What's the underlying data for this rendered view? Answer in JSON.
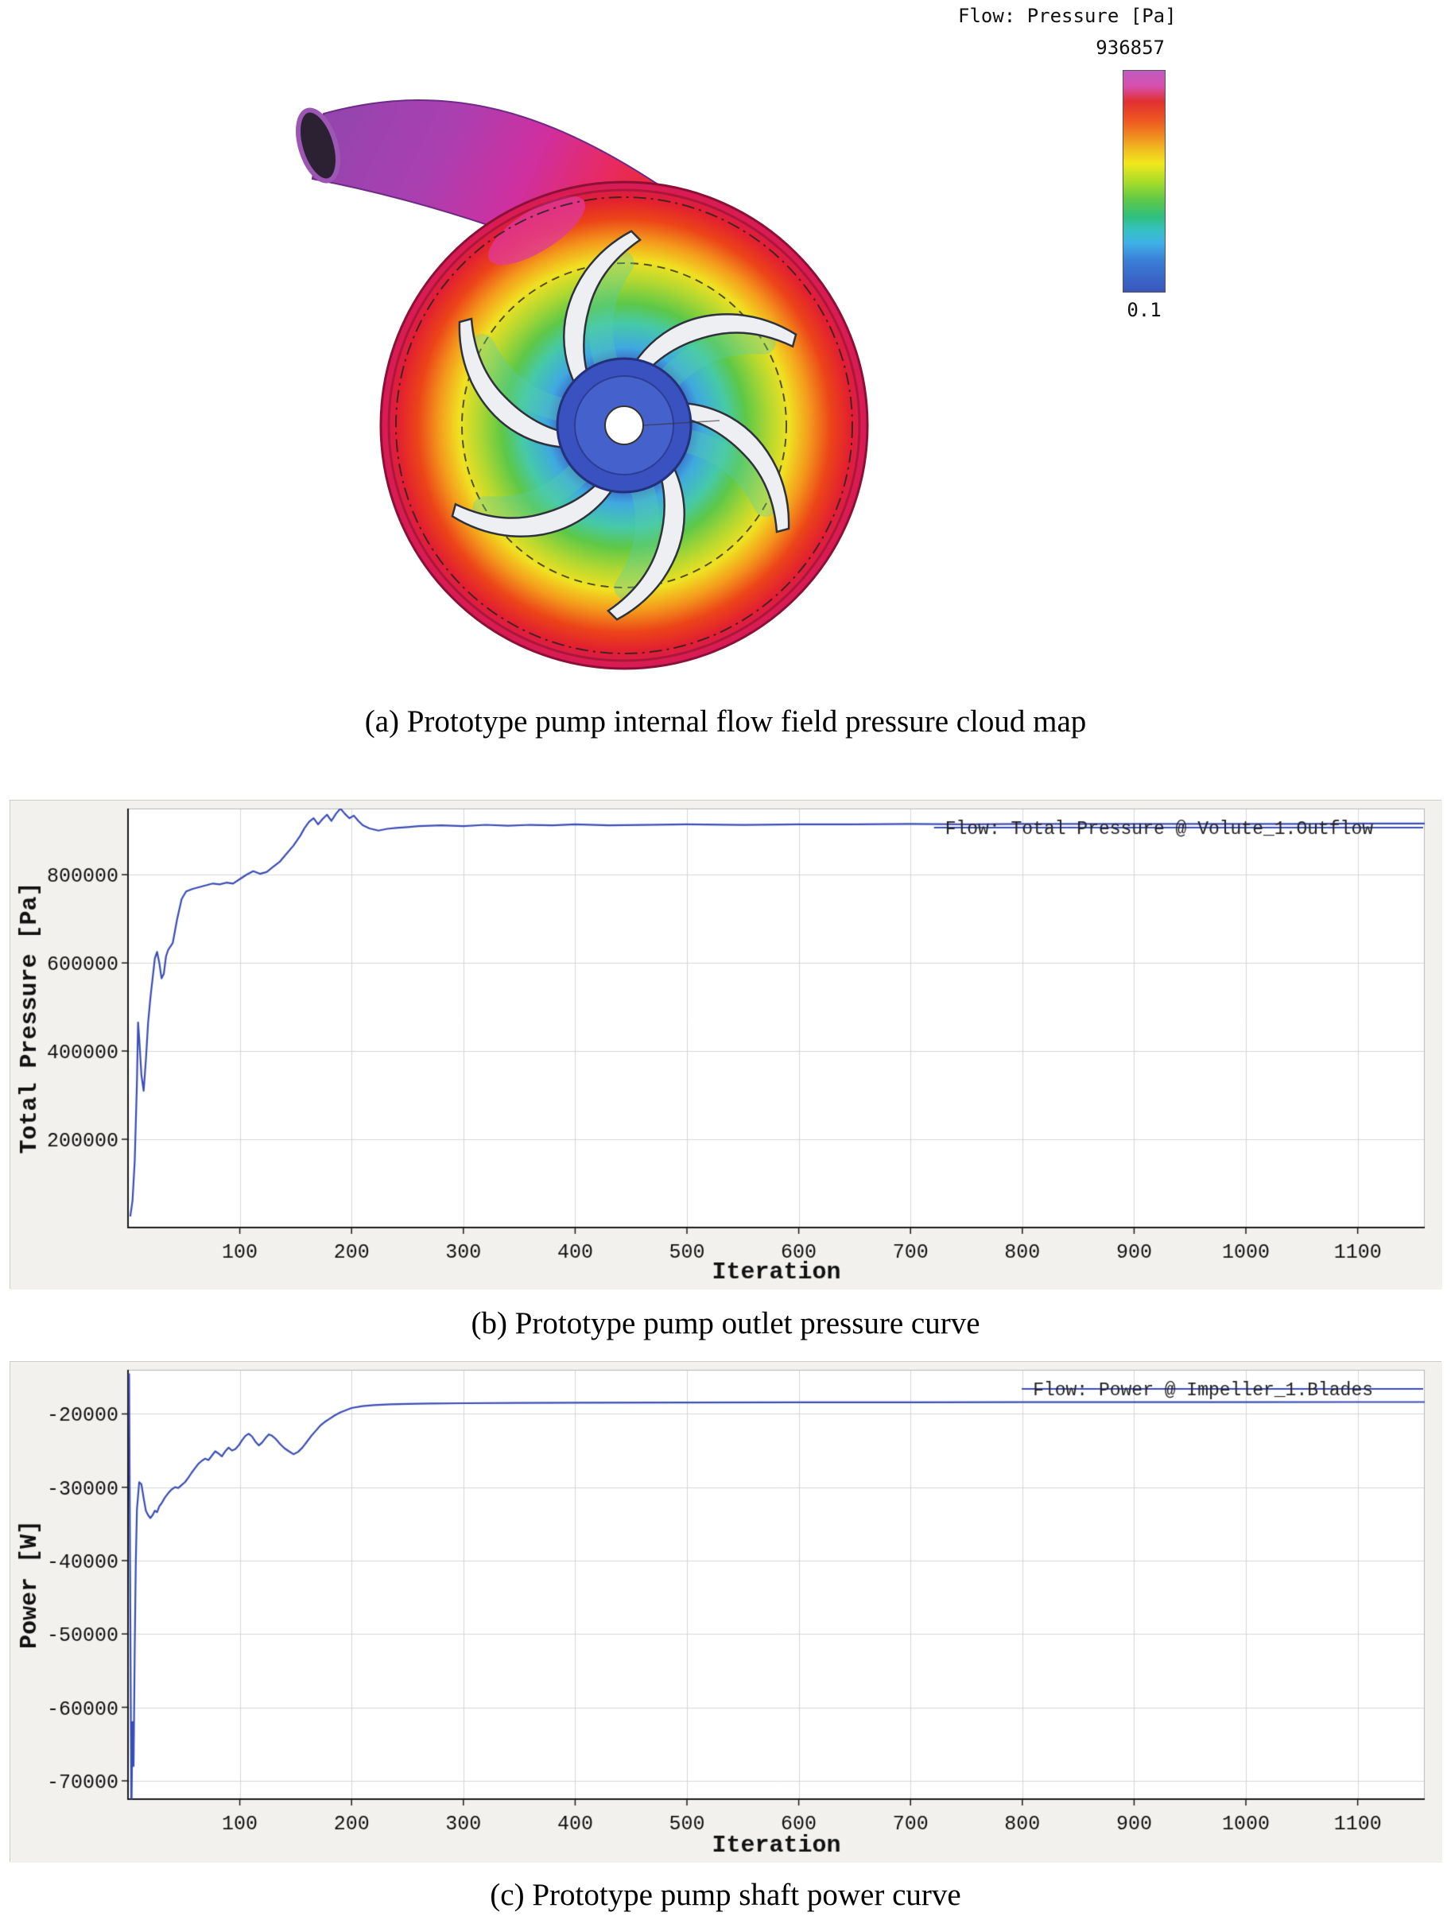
{
  "figure_a": {
    "legend": {
      "title": "Flow: Pressure [Pa]",
      "max_value": "936857",
      "min_value": "0.1",
      "colorbar_colors": [
        "#c05cc0",
        "#e03030",
        "#f08020",
        "#f0e81c",
        "#62c946",
        "#35c2c2",
        "#3a7ed6",
        "#3a55bc"
      ]
    },
    "caption": "(a) Prototype pump internal flow field pressure cloud map"
  },
  "captions": {
    "b": "(b) Prototype pump outlet pressure curve",
    "c": "(c) Prototype pump shaft power curve"
  },
  "chart_data": [
    {
      "id": "chart-b",
      "type": "line",
      "title": "",
      "xlabel": "Iteration",
      "ylabel": "Total Pressure [Pa]",
      "legend": "Flow: Total Pressure @ Volute_1.Outflow",
      "line_color": "#3a4db4",
      "grid": true,
      "legend_position": "top-right",
      "xlim": [
        0,
        1160
      ],
      "ylim": [
        0,
        950000
      ],
      "xticks": [
        100,
        200,
        300,
        400,
        500,
        600,
        700,
        800,
        900,
        1000,
        1100
      ],
      "yticks": [
        200000,
        400000,
        600000,
        800000
      ],
      "points": [
        [
          2,
          25000
        ],
        [
          4,
          60000
        ],
        [
          6,
          150000
        ],
        [
          8,
          330000
        ],
        [
          9,
          465000
        ],
        [
          10,
          430000
        ],
        [
          12,
          345000
        ],
        [
          14,
          310000
        ],
        [
          16,
          380000
        ],
        [
          18,
          465000
        ],
        [
          20,
          520000
        ],
        [
          22,
          565000
        ],
        [
          24,
          610000
        ],
        [
          26,
          625000
        ],
        [
          28,
          600000
        ],
        [
          30,
          565000
        ],
        [
          32,
          575000
        ],
        [
          34,
          615000
        ],
        [
          36,
          630000
        ],
        [
          40,
          645000
        ],
        [
          44,
          700000
        ],
        [
          48,
          745000
        ],
        [
          52,
          762000
        ],
        [
          58,
          768000
        ],
        [
          64,
          772000
        ],
        [
          70,
          776000
        ],
        [
          76,
          780000
        ],
        [
          82,
          778000
        ],
        [
          88,
          782000
        ],
        [
          94,
          780000
        ],
        [
          100,
          790000
        ],
        [
          106,
          800000
        ],
        [
          112,
          808000
        ],
        [
          118,
          802000
        ],
        [
          124,
          806000
        ],
        [
          130,
          818000
        ],
        [
          136,
          830000
        ],
        [
          142,
          848000
        ],
        [
          148,
          866000
        ],
        [
          154,
          888000
        ],
        [
          158,
          906000
        ],
        [
          162,
          920000
        ],
        [
          166,
          928000
        ],
        [
          170,
          914000
        ],
        [
          174,
          926000
        ],
        [
          178,
          936000
        ],
        [
          182,
          922000
        ],
        [
          186,
          938000
        ],
        [
          190,
          950000
        ],
        [
          194,
          938000
        ],
        [
          198,
          928000
        ],
        [
          202,
          934000
        ],
        [
          206,
          922000
        ],
        [
          210,
          912000
        ],
        [
          216,
          905000
        ],
        [
          224,
          900000
        ],
        [
          232,
          904000
        ],
        [
          240,
          906000
        ],
        [
          250,
          908000
        ],
        [
          260,
          910000
        ],
        [
          280,
          912000
        ],
        [
          300,
          910000
        ],
        [
          320,
          913000
        ],
        [
          340,
          911000
        ],
        [
          360,
          913000
        ],
        [
          380,
          912000
        ],
        [
          400,
          914000
        ],
        [
          430,
          912000
        ],
        [
          460,
          913000
        ],
        [
          500,
          914000
        ],
        [
          550,
          913000
        ],
        [
          600,
          914000
        ],
        [
          650,
          914000
        ],
        [
          700,
          915000
        ],
        [
          750,
          914000
        ],
        [
          800,
          915000
        ],
        [
          850,
          915000
        ],
        [
          900,
          915000
        ],
        [
          950,
          915000
        ],
        [
          1000,
          915000
        ],
        [
          1050,
          915000
        ],
        [
          1100,
          916000
        ],
        [
          1160,
          916000
        ]
      ]
    },
    {
      "id": "chart-c",
      "type": "line",
      "title": "",
      "xlabel": "Iteration",
      "ylabel": "Power [W]",
      "legend": "Flow: Power @ Impeller_1.Blades",
      "line_color": "#3a4db4",
      "grid": true,
      "legend_position": "top-right",
      "xlim": [
        0,
        1160
      ],
      "ylim": [
        -72500,
        -14000
      ],
      "xticks": [
        100,
        200,
        300,
        400,
        500,
        600,
        700,
        800,
        900,
        1000,
        1100
      ],
      "yticks": [
        -70000,
        -60000,
        -50000,
        -40000,
        -30000,
        -20000
      ],
      "points": [
        [
          1,
          -14500
        ],
        [
          2,
          -45000
        ],
        [
          3,
          -75500
        ],
        [
          4,
          -62000
        ],
        [
          5,
          -68000
        ],
        [
          6,
          -52000
        ],
        [
          7,
          -40000
        ],
        [
          8,
          -33000
        ],
        [
          10,
          -29300
        ],
        [
          12,
          -29600
        ],
        [
          14,
          -31500
        ],
        [
          16,
          -33200
        ],
        [
          18,
          -33800
        ],
        [
          20,
          -34200
        ],
        [
          22,
          -33800
        ],
        [
          24,
          -33200
        ],
        [
          26,
          -33400
        ],
        [
          28,
          -32600
        ],
        [
          30,
          -32200
        ],
        [
          33,
          -31400
        ],
        [
          36,
          -30800
        ],
        [
          39,
          -30300
        ],
        [
          42,
          -30000
        ],
        [
          45,
          -30100
        ],
        [
          48,
          -29700
        ],
        [
          51,
          -29300
        ],
        [
          54,
          -28700
        ],
        [
          57,
          -28000
        ],
        [
          60,
          -27400
        ],
        [
          63,
          -26800
        ],
        [
          66,
          -26400
        ],
        [
          69,
          -26100
        ],
        [
          72,
          -26300
        ],
        [
          75,
          -25700
        ],
        [
          78,
          -25100
        ],
        [
          81,
          -25400
        ],
        [
          84,
          -25800
        ],
        [
          87,
          -25100
        ],
        [
          90,
          -24600
        ],
        [
          93,
          -25000
        ],
        [
          96,
          -24800
        ],
        [
          99,
          -24300
        ],
        [
          102,
          -23600
        ],
        [
          105,
          -23000
        ],
        [
          108,
          -22700
        ],
        [
          111,
          -23100
        ],
        [
          114,
          -23800
        ],
        [
          117,
          -24300
        ],
        [
          120,
          -23900
        ],
        [
          123,
          -23300
        ],
        [
          126,
          -22800
        ],
        [
          129,
          -23000
        ],
        [
          132,
          -23400
        ],
        [
          136,
          -24100
        ],
        [
          140,
          -24700
        ],
        [
          144,
          -25100
        ],
        [
          148,
          -25500
        ],
        [
          152,
          -25200
        ],
        [
          156,
          -24600
        ],
        [
          160,
          -23800
        ],
        [
          164,
          -23000
        ],
        [
          168,
          -22300
        ],
        [
          172,
          -21600
        ],
        [
          176,
          -21100
        ],
        [
          180,
          -20700
        ],
        [
          185,
          -20200
        ],
        [
          190,
          -19800
        ],
        [
          195,
          -19500
        ],
        [
          200,
          -19200
        ],
        [
          210,
          -18950
        ],
        [
          220,
          -18800
        ],
        [
          235,
          -18700
        ],
        [
          250,
          -18650
        ],
        [
          270,
          -18600
        ],
        [
          300,
          -18550
        ],
        [
          350,
          -18500
        ],
        [
          400,
          -18480
        ],
        [
          500,
          -18450
        ],
        [
          600,
          -18430
        ],
        [
          700,
          -18420
        ],
        [
          800,
          -18410
        ],
        [
          900,
          -18400
        ],
        [
          1000,
          -18400
        ],
        [
          1100,
          -18390
        ],
        [
          1160,
          -18390
        ]
      ]
    }
  ]
}
